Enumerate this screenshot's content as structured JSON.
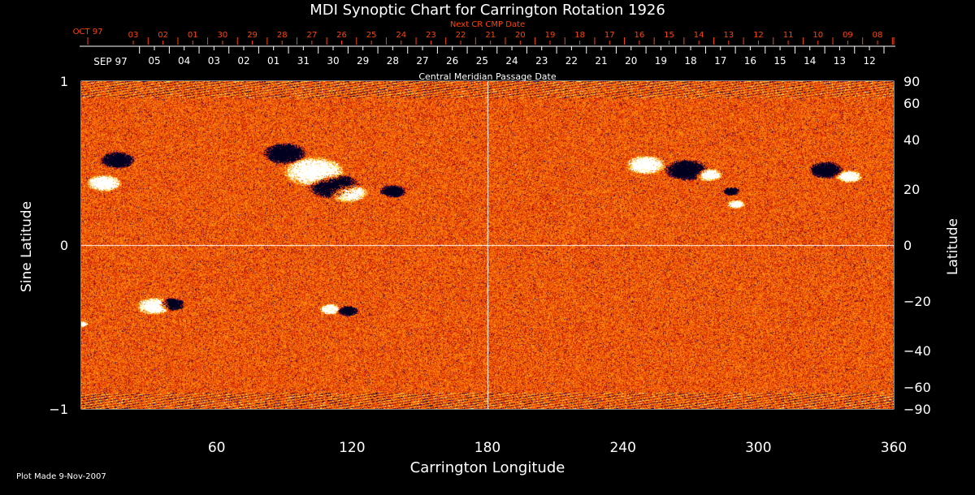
{
  "chart_data": {
    "type": "heatmap",
    "title": "MDI Synoptic Chart for Carrington Rotation 1926",
    "xlabel": "Carrington Longitude",
    "ylabel": "Sine Latitude",
    "y2label": "Latitude",
    "xlim": [
      0,
      360
    ],
    "ylim": [
      -1,
      1
    ],
    "x_ticks": [
      60,
      120,
      180,
      240,
      300,
      360
    ],
    "y_ticks": [
      -1,
      0,
      1
    ],
    "y_tick_labels": [
      "−1",
      "0",
      "1"
    ],
    "y2_ticks": [
      90,
      60,
      40,
      20,
      0,
      -20,
      -40,
      -60,
      -90
    ],
    "y2_tick_labels": [
      "90",
      "60",
      "40",
      "20",
      "0",
      "−20",
      "−40",
      "−60",
      "−90"
    ],
    "top_axis": {
      "label": "Central Meridian Passage Date",
      "month_label": "SEP 97",
      "dates": [
        "05",
        "04",
        "03",
        "02",
        "01",
        "31",
        "30",
        "29",
        "28",
        "27",
        "26",
        "25",
        "24",
        "23",
        "22",
        "21",
        "20",
        "19",
        "18",
        "17",
        "16",
        "15",
        "14",
        "13",
        "12"
      ]
    },
    "next_cr_axis": {
      "label": "Next CR CMP Date",
      "month_label": "OCT 97",
      "dates": [
        "03",
        "02",
        "01",
        "30",
        "29",
        "28",
        "27",
        "26",
        "25",
        "24",
        "23",
        "22",
        "21",
        "20",
        "19",
        "18",
        "17",
        "16",
        "15",
        "14",
        "13",
        "12",
        "11",
        "10",
        "09",
        "08"
      ],
      "color": "#ff4400"
    },
    "colors": {
      "background": "#000000",
      "field": "#ff5500",
      "positive": "#ffffff",
      "negative": "#000040"
    }
  },
  "footer": {
    "plot_made": "Plot Made  9-Nov-2007"
  }
}
